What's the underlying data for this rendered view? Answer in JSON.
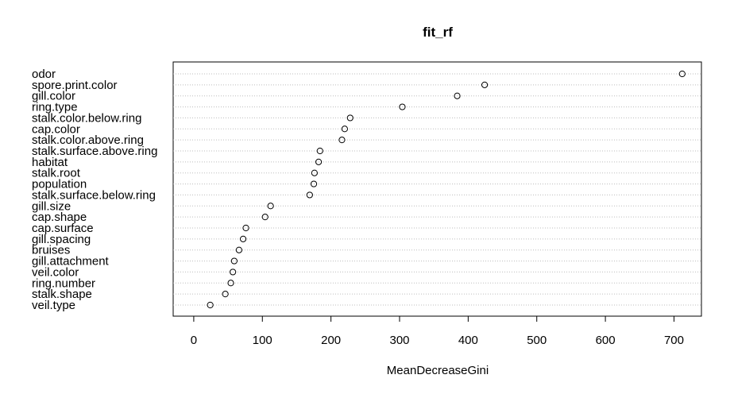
{
  "chart_data": {
    "type": "scatter",
    "title": "fit_rf",
    "xlabel": "MeanDecreaseGini",
    "ylabel": "",
    "xlim": [
      -30,
      740
    ],
    "x_ticks": [
      0,
      100,
      200,
      300,
      400,
      500,
      600,
      700
    ],
    "grid": "dotted horizontal lines per variable",
    "categories": [
      "odor",
      "spore.print.color",
      "gill.color",
      "ring.type",
      "stalk.color.below.ring",
      "cap.color",
      "stalk.color.above.ring",
      "stalk.surface.above.ring",
      "habitat",
      "stalk.root",
      "population",
      "stalk.surface.below.ring",
      "gill.size",
      "cap.shape",
      "cap.surface",
      "gill.spacing",
      "bruises",
      "gill.attachment",
      "veil.color",
      "ring.number",
      "stalk.shape",
      "veil.type"
    ],
    "values": [
      712,
      424,
      384,
      304,
      228,
      220,
      216,
      184,
      182,
      176,
      175,
      169,
      112,
      104,
      76,
      72,
      66,
      59,
      57,
      54,
      46,
      24
    ]
  }
}
